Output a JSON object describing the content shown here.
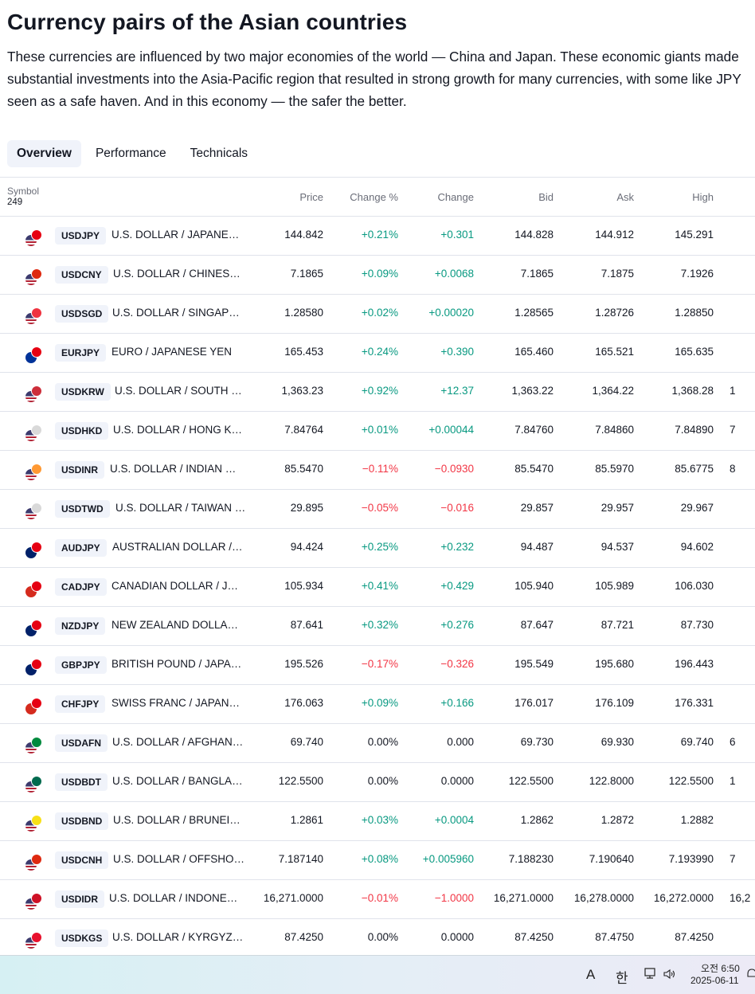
{
  "header": {
    "title": "Currency pairs of the Asian countries",
    "description": "These currencies are influenced by two major economies of the world — China and Japan. These economic giants made substantial investments into the Asia-Pacific region that resulted in strong growth for many currencies, with some like JPY seen as a safe haven. And in this economy — the safer the better."
  },
  "tabs": [
    "Overview",
    "Performance",
    "Technicals"
  ],
  "table": {
    "symbol_label": "Symbol",
    "symbol_count": "249",
    "columns": {
      "price": "Price",
      "change_pct": "Change %",
      "change": "Change",
      "bid": "Bid",
      "ask": "Ask",
      "high": "High"
    },
    "rows": [
      {
        "ticker": "USDJPY",
        "name": "U.S. DOLLAR / JAPANESE YEN",
        "price": "144.842",
        "change_pct": "+0.21%",
        "change": "+0.301",
        "bid": "144.828",
        "ask": "144.912",
        "high": "145.291",
        "extra": "",
        "dir": "pos",
        "base_color": "#b22234",
        "quote_color": "#e60012"
      },
      {
        "ticker": "USDCNY",
        "name": "U.S. DOLLAR / CHINESE YUAN",
        "price": "7.1865",
        "change_pct": "+0.09%",
        "change": "+0.0068",
        "bid": "7.1865",
        "ask": "7.1875",
        "high": "7.1926",
        "extra": "",
        "dir": "pos",
        "base_color": "#b22234",
        "quote_color": "#de2910"
      },
      {
        "ticker": "USDSGD",
        "name": "U.S. DOLLAR / SINGAPORE DOLLAR",
        "price": "1.28580",
        "change_pct": "+0.02%",
        "change": "+0.00020",
        "bid": "1.28565",
        "ask": "1.28726",
        "high": "1.28850",
        "extra": "",
        "dir": "pos",
        "base_color": "#b22234",
        "quote_color": "#ef3340"
      },
      {
        "ticker": "EURJPY",
        "name": "EURO / JAPANESE YEN",
        "price": "165.453",
        "change_pct": "+0.24%",
        "change": "+0.390",
        "bid": "165.460",
        "ask": "165.521",
        "high": "165.635",
        "extra": "",
        "dir": "pos",
        "base_color": "#003399",
        "quote_color": "#e60012"
      },
      {
        "ticker": "USDKRW",
        "name": "U.S. DOLLAR / SOUTH KOREAN WON",
        "price": "1,363.23",
        "change_pct": "+0.92%",
        "change": "+12.37",
        "bid": "1,363.22",
        "ask": "1,364.22",
        "high": "1,368.28",
        "extra": "1",
        "dir": "pos",
        "base_color": "#b22234",
        "quote_color": "#cd2e3a"
      },
      {
        "ticker": "USDHKD",
        "name": "U.S. DOLLAR / HONG KONG DOLLAR",
        "price": "7.84764",
        "change_pct": "+0.01%",
        "change": "+0.00044",
        "bid": "7.84760",
        "ask": "7.84860",
        "high": "7.84890",
        "extra": "7",
        "dir": "pos",
        "base_color": "#b22234",
        "quote_color": "#d9d9d9"
      },
      {
        "ticker": "USDINR",
        "name": "U.S. DOLLAR / INDIAN RUPEE",
        "price": "85.5470",
        "change_pct": "−0.11%",
        "change": "−0.0930",
        "bid": "85.5470",
        "ask": "85.5970",
        "high": "85.6775",
        "extra": "8",
        "dir": "neg",
        "base_color": "#b22234",
        "quote_color": "#ff9933"
      },
      {
        "ticker": "USDTWD",
        "name": "U.S. DOLLAR / TAIWAN DOLLAR",
        "price": "29.895",
        "change_pct": "−0.05%",
        "change": "−0.016",
        "bid": "29.857",
        "ask": "29.957",
        "high": "29.967",
        "extra": "",
        "dir": "neg",
        "base_color": "#b22234",
        "quote_color": "#d9d9d9"
      },
      {
        "ticker": "AUDJPY",
        "name": "AUSTRALIAN DOLLAR / JAPANESE YEN",
        "price": "94.424",
        "change_pct": "+0.25%",
        "change": "+0.232",
        "bid": "94.487",
        "ask": "94.537",
        "high": "94.602",
        "extra": "",
        "dir": "pos",
        "base_color": "#012169",
        "quote_color": "#e60012"
      },
      {
        "ticker": "CADJPY",
        "name": "CANADIAN DOLLAR / JAPANESE YEN",
        "price": "105.934",
        "change_pct": "+0.41%",
        "change": "+0.429",
        "bid": "105.940",
        "ask": "105.989",
        "high": "106.030",
        "extra": "",
        "dir": "pos",
        "base_color": "#d52b1e",
        "quote_color": "#e60012"
      },
      {
        "ticker": "NZDJPY",
        "name": "NEW ZEALAND DOLLAR / JAPANESE YEN",
        "price": "87.641",
        "change_pct": "+0.32%",
        "change": "+0.276",
        "bid": "87.647",
        "ask": "87.721",
        "high": "87.730",
        "extra": "",
        "dir": "pos",
        "base_color": "#012169",
        "quote_color": "#e60012"
      },
      {
        "ticker": "GBPJPY",
        "name": "BRITISH POUND / JAPANESE YEN",
        "price": "195.526",
        "change_pct": "−0.17%",
        "change": "−0.326",
        "bid": "195.549",
        "ask": "195.680",
        "high": "196.443",
        "extra": "",
        "dir": "neg",
        "base_color": "#012169",
        "quote_color": "#e60012"
      },
      {
        "ticker": "CHFJPY",
        "name": "SWISS FRANC / JAPANESE YEN",
        "price": "176.063",
        "change_pct": "+0.09%",
        "change": "+0.166",
        "bid": "176.017",
        "ask": "176.109",
        "high": "176.331",
        "extra": "",
        "dir": "pos",
        "base_color": "#d52b1e",
        "quote_color": "#e60012"
      },
      {
        "ticker": "USDAFN",
        "name": "U.S. DOLLAR / AFGHAN AFGHANI",
        "price": "69.740",
        "change_pct": "0.00%",
        "change": "0.000",
        "bid": "69.730",
        "ask": "69.930",
        "high": "69.740",
        "extra": "6",
        "dir": "neu",
        "base_color": "#b22234",
        "quote_color": "#008a3e"
      },
      {
        "ticker": "USDBDT",
        "name": "U.S. DOLLAR / BANGLADESHI TAKA",
        "price": "122.5500",
        "change_pct": "0.00%",
        "change": "0.0000",
        "bid": "122.5500",
        "ask": "122.8000",
        "high": "122.5500",
        "extra": "1",
        "dir": "neu",
        "base_color": "#b22234",
        "quote_color": "#006a4e"
      },
      {
        "ticker": "USDBND",
        "name": "U.S. DOLLAR / BRUNEIAN DOLLAR",
        "price": "1.2861",
        "change_pct": "+0.03%",
        "change": "+0.0004",
        "bid": "1.2862",
        "ask": "1.2872",
        "high": "1.2882",
        "extra": "",
        "dir": "pos",
        "base_color": "#b22234",
        "quote_color": "#f7e017"
      },
      {
        "ticker": "USDCNH",
        "name": "U.S. DOLLAR / OFFSHORE CHINESE YUAN",
        "price": "7.187140",
        "change_pct": "+0.08%",
        "change": "+0.005960",
        "bid": "7.188230",
        "ask": "7.190640",
        "high": "7.193990",
        "extra": "7",
        "dir": "pos",
        "base_color": "#b22234",
        "quote_color": "#de2910"
      },
      {
        "ticker": "USDIDR",
        "name": "U.S. DOLLAR / INDONESIAN RUPIAH",
        "price": "16,271.0000",
        "change_pct": "−0.01%",
        "change": "−1.0000",
        "bid": "16,271.0000",
        "ask": "16,278.0000",
        "high": "16,272.0000",
        "extra": "16,2",
        "dir": "neg",
        "base_color": "#b22234",
        "quote_color": "#ce1126"
      },
      {
        "ticker": "USDKGS",
        "name": "U.S. DOLLAR / KYRGYZSTANI SOM",
        "price": "87.4250",
        "change_pct": "0.00%",
        "change": "0.0000",
        "bid": "87.4250",
        "ask": "87.4750",
        "high": "87.4250",
        "extra": "",
        "dir": "neu",
        "base_color": "#b22234",
        "quote_color": "#e8112d"
      }
    ]
  },
  "taskbar": {
    "ime_label": "A",
    "lang_label": "한",
    "time": "오전 6:50",
    "date": "2025-06-11"
  }
}
